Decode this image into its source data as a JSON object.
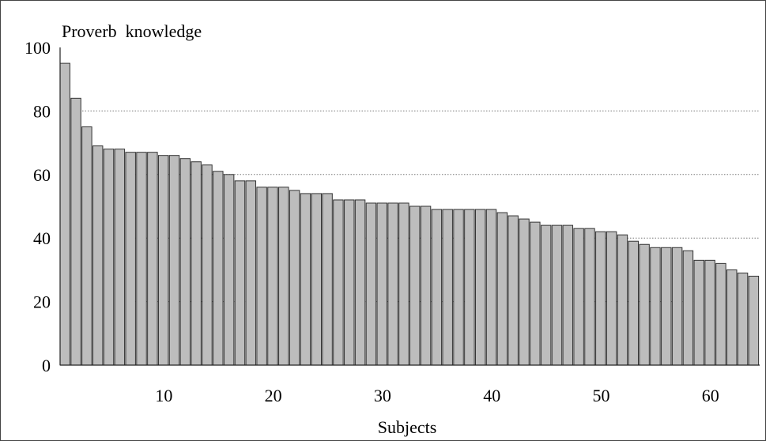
{
  "chart_data": {
    "type": "bar",
    "title": "Proverb  knowledge",
    "xlabel": "Subjects",
    "ylabel": "",
    "ylim": [
      0,
      100
    ],
    "xlim": [
      0.5,
      64.5
    ],
    "yticks": [
      0,
      20,
      40,
      60,
      80,
      100
    ],
    "xticks": [
      10,
      20,
      30,
      40,
      50,
      60
    ],
    "grid": "horizontal dotted",
    "legend": "none",
    "bar_color": "#bdbdbd",
    "bar_edge_color": "#333333",
    "categories": [
      1,
      2,
      3,
      4,
      5,
      6,
      7,
      8,
      9,
      10,
      11,
      12,
      13,
      14,
      15,
      16,
      17,
      18,
      19,
      20,
      21,
      22,
      23,
      24,
      25,
      26,
      27,
      28,
      29,
      30,
      31,
      32,
      33,
      34,
      35,
      36,
      37,
      38,
      39,
      40,
      41,
      42,
      43,
      44,
      45,
      46,
      47,
      48,
      49,
      50,
      51,
      52,
      53,
      54,
      55,
      56,
      57,
      58,
      59,
      60,
      61,
      62,
      63,
      64
    ],
    "values": [
      95,
      84,
      75,
      69,
      68,
      68,
      67,
      67,
      67,
      66,
      66,
      65,
      64,
      63,
      61,
      60,
      58,
      58,
      56,
      56,
      56,
      55,
      54,
      54,
      54,
      52,
      52,
      52,
      51,
      51,
      51,
      51,
      50,
      50,
      49,
      49,
      49,
      49,
      49,
      49,
      48,
      47,
      46,
      45,
      44,
      44,
      44,
      43,
      43,
      42,
      42,
      41,
      39,
      38,
      37,
      37,
      37,
      36,
      33,
      33,
      32,
      30,
      29,
      28
    ]
  }
}
